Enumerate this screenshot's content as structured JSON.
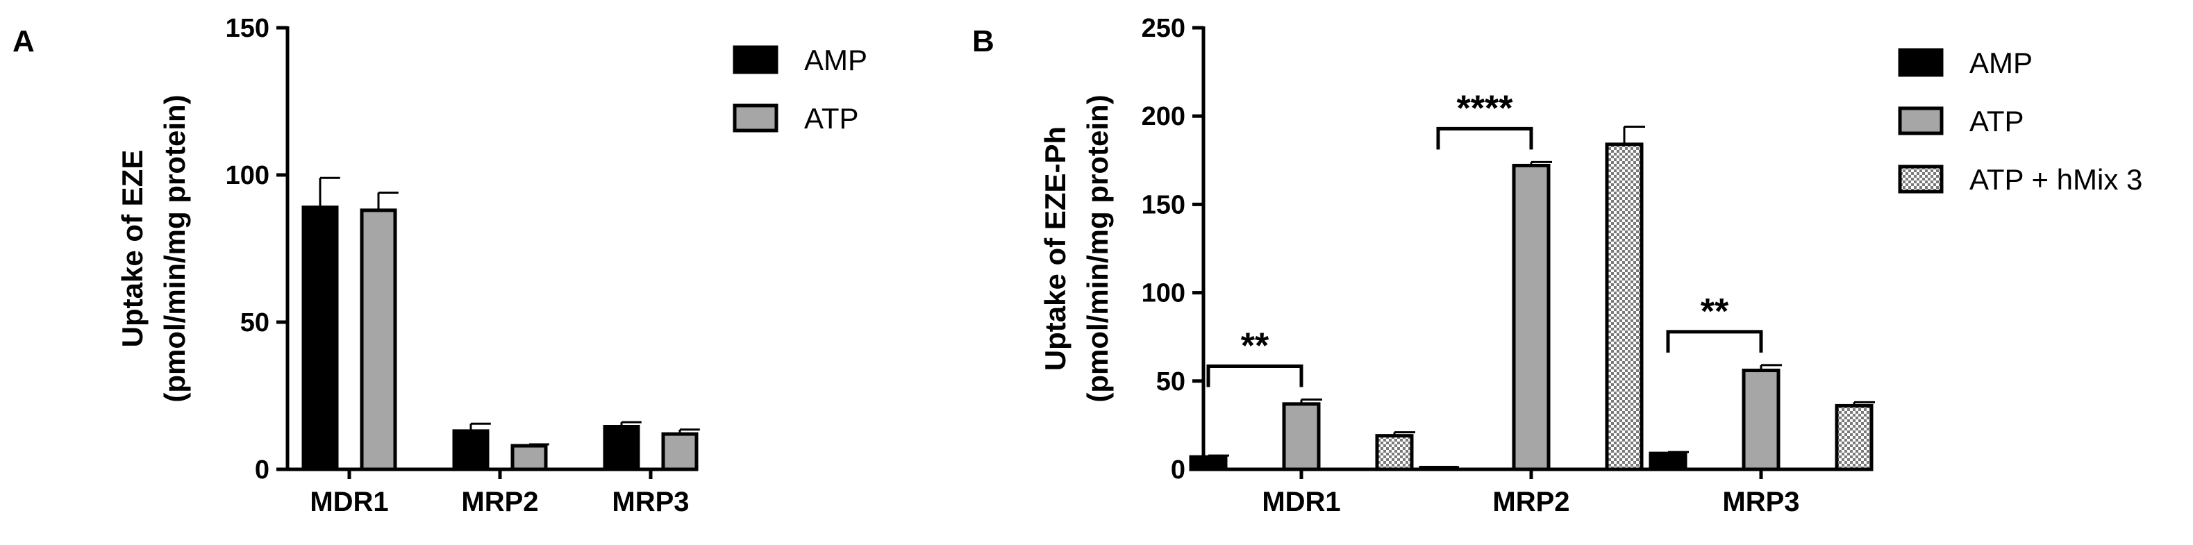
{
  "figure": {
    "panel_a_letter": "A",
    "panel_b_letter": "B"
  },
  "colors": {
    "AMP": "#000000",
    "ATP": "#a6a6a6",
    "ATP_hMix3": "checkered"
  },
  "chart_data": [
    {
      "type": "bar",
      "panel": "A",
      "categories": [
        "MDR1",
        "MRP2",
        "MRP3"
      ],
      "series": [
        {
          "name": "AMP",
          "values": [
            89,
            13,
            14.5
          ],
          "errors": [
            10,
            2.5,
            1.5
          ]
        },
        {
          "name": "ATP",
          "values": [
            88,
            8,
            12
          ],
          "errors": [
            6,
            0.5,
            1.5
          ]
        }
      ],
      "ylabel_line1": "Uptake of EZE",
      "ylabel_line2": "(pmol/min/mg protein)",
      "ylim": [
        0,
        150
      ],
      "yticks": [
        0,
        50,
        100,
        150
      ],
      "legend": "top-right",
      "grid": false,
      "annotations": []
    },
    {
      "type": "bar",
      "panel": "B",
      "categories": [
        "MDR1",
        "MRP2",
        "MRP3"
      ],
      "series": [
        {
          "name": "AMP",
          "values": [
            7,
            1,
            9
          ],
          "errors": [
            0.8,
            0.3,
            0.8
          ]
        },
        {
          "name": "ATP",
          "values": [
            37,
            172,
            56
          ],
          "errors": [
            2.5,
            2,
            3
          ]
        },
        {
          "name": "ATP + hMix 3",
          "values": [
            19,
            184,
            36
          ],
          "errors": [
            2,
            10,
            2
          ]
        }
      ],
      "ylabel_line1": "Uptake of EZE-Ph",
      "ylabel_line2": "(pmol/min/mg protein)",
      "ylim": [
        0,
        250
      ],
      "yticks": [
        0,
        50,
        100,
        150,
        200,
        250
      ],
      "legend": "top-right",
      "grid": false,
      "annotations": [
        {
          "category": "MDR1",
          "between": [
            "AMP",
            "ATP"
          ],
          "text": "**"
        },
        {
          "category": "MRP2",
          "between": [
            "AMP",
            "ATP"
          ],
          "text": "****"
        },
        {
          "category": "MRP3",
          "between": [
            "AMP",
            "ATP"
          ],
          "text": "**"
        }
      ]
    }
  ]
}
